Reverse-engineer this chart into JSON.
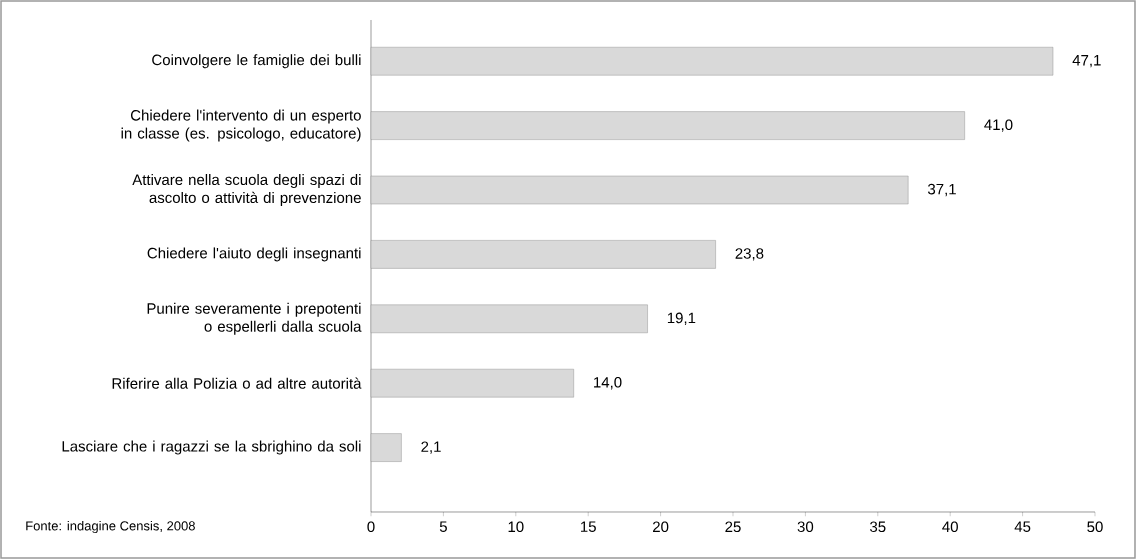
{
  "chart_data": {
    "type": "bar",
    "orientation": "horizontal",
    "categories": [
      "Coinvolgere le famiglie dei bulli",
      "Chiedere l'intervento di un esperto in classe (es. psicologo, educatore)",
      "Attivare nella scuola degli spazi di ascolto o attività di prevenzione",
      "Chiedere l'aiuto degli insegnanti",
      "Punire severamente i prepotenti o espellerli dalla scuola",
      "Riferire alla Polizia o ad altre autorità",
      "Lasciare che i ragazzi se la sbrighino da soli"
    ],
    "values": [
      47.1,
      41.0,
      37.1,
      23.8,
      19.1,
      14.0,
      2.1
    ],
    "value_labels": [
      "47,1",
      "41,0",
      "37,1",
      "23,8",
      "19,1",
      "14,0",
      "2,1"
    ],
    "color": "#d9d9d9",
    "xlim": [
      0,
      50
    ],
    "xticks": [
      0,
      5,
      10,
      15,
      20,
      25,
      30,
      35,
      40,
      45,
      50
    ],
    "grid": false,
    "annotations": [
      "Fonte: indagine Censis, 2008"
    ]
  }
}
